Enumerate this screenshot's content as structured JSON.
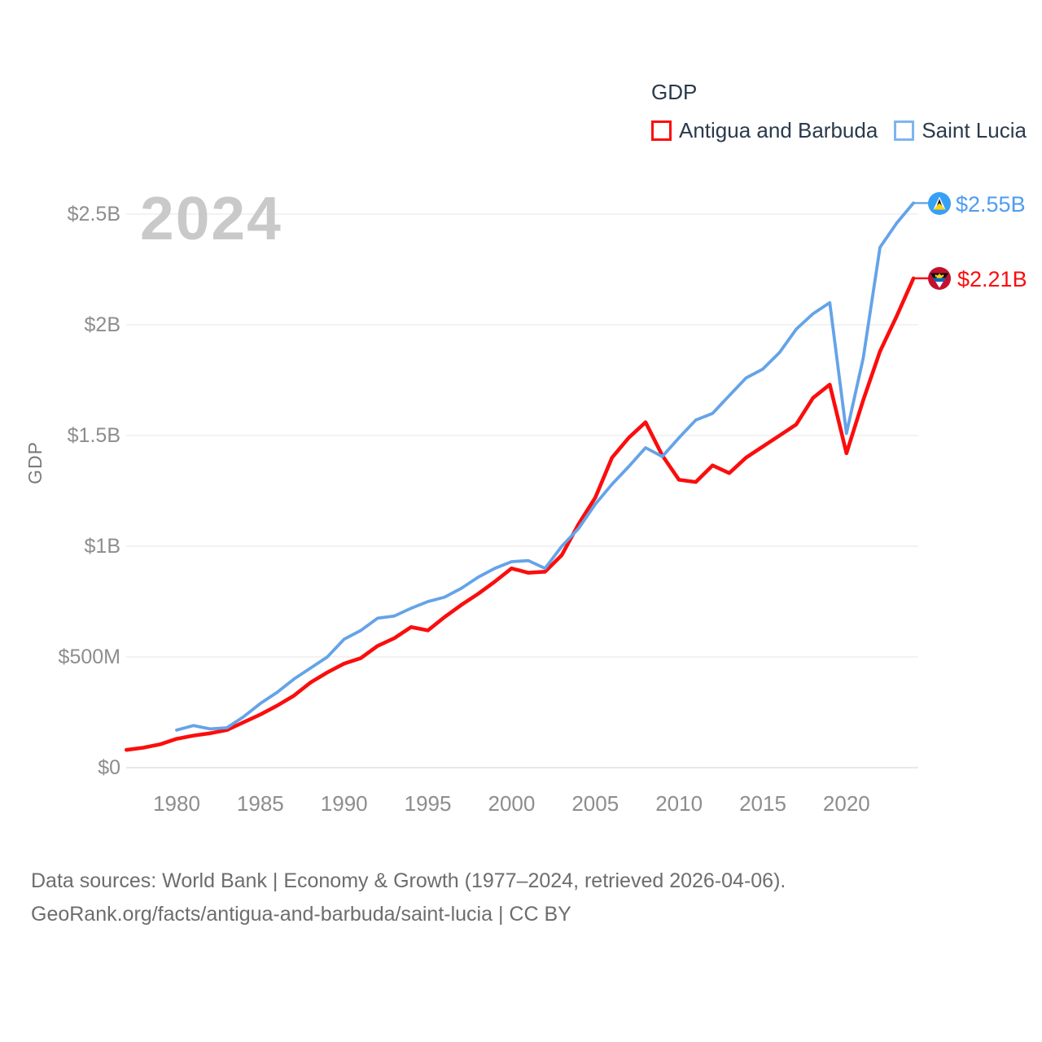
{
  "legend": {
    "title": "GDP",
    "items": [
      {
        "label": "Antigua and Barbuda",
        "color": "#fb0d0d"
      },
      {
        "label": "Saint Lucia",
        "color": "#7db6ee"
      }
    ]
  },
  "watermark": "2024",
  "y_axis_title": "GDP",
  "end_labels": [
    {
      "series": "Saint Lucia",
      "value": "$2.55B",
      "color": "#4e9cf1",
      "flag": "saint-lucia-flag-icon"
    },
    {
      "series": "Antigua and Barbuda",
      "value": "$2.21B",
      "color": "#fb0d0d",
      "flag": "antigua-and-barbuda-flag-icon"
    }
  ],
  "footer": {
    "line1": "Data sources: World Bank | Economy & Growth (1977–2024, retrieved 2026-04-06).",
    "line2": "GeoRank.org/facts/antigua-and-barbuda/saint-lucia | CC BY"
  },
  "chart_data": {
    "type": "line",
    "title": "GDP",
    "ylabel": "GDP",
    "xlabel": "",
    "grid": "horizontal-only",
    "legend_position": "top-right",
    "xlim": [
      1977,
      2024
    ],
    "ylim_billions": [
      0,
      2.64
    ],
    "x_years": [
      1977,
      1978,
      1979,
      1980,
      1981,
      1982,
      1983,
      1984,
      1985,
      1986,
      1987,
      1988,
      1989,
      1990,
      1991,
      1992,
      1993,
      1994,
      1995,
      1996,
      1997,
      1998,
      1999,
      2000,
      2001,
      2002,
      2003,
      2004,
      2005,
      2006,
      2007,
      2008,
      2009,
      2010,
      2011,
      2012,
      2013,
      2014,
      2015,
      2016,
      2017,
      2018,
      2019,
      2020,
      2021,
      2022,
      2023,
      2024
    ],
    "series": [
      {
        "name": "Antigua and Barbuda",
        "color": "#fb0d0d",
        "stroke_width": 4.6,
        "values_billions": [
          0.08,
          0.09,
          0.105,
          0.13,
          0.145,
          0.155,
          0.17,
          0.205,
          0.24,
          0.28,
          0.325,
          0.385,
          0.43,
          0.47,
          0.495,
          0.55,
          0.585,
          0.635,
          0.62,
          0.68,
          0.735,
          0.785,
          0.84,
          0.9,
          0.88,
          0.885,
          0.96,
          1.1,
          1.22,
          1.4,
          1.49,
          1.56,
          1.41,
          1.3,
          1.29,
          1.365,
          1.33,
          1.4,
          1.45,
          1.5,
          1.55,
          1.67,
          1.73,
          1.42,
          1.66,
          1.88,
          2.04,
          2.21
        ]
      },
      {
        "name": "Saint Lucia",
        "color": "#64a3e8",
        "stroke_width": 3.8,
        "values_billions": [
          null,
          null,
          null,
          0.17,
          0.19,
          0.175,
          0.18,
          0.23,
          0.29,
          0.34,
          0.4,
          0.45,
          0.5,
          0.58,
          0.62,
          0.675,
          0.685,
          0.72,
          0.75,
          0.77,
          0.81,
          0.86,
          0.9,
          0.93,
          0.935,
          0.9,
          1.0,
          1.08,
          1.19,
          1.28,
          1.36,
          1.445,
          1.405,
          1.49,
          1.57,
          1.6,
          1.68,
          1.76,
          1.8,
          1.875,
          1.98,
          2.05,
          2.1,
          1.51,
          1.85,
          2.35,
          2.46,
          2.55
        ]
      }
    ],
    "y_ticks": [
      {
        "label": "$0",
        "value_billions": 0
      },
      {
        "label": "$500M",
        "value_billions": 0.5
      },
      {
        "label": "$1B",
        "value_billions": 1
      },
      {
        "label": "$1.5B",
        "value_billions": 1.5
      },
      {
        "label": "$2B",
        "value_billions": 2
      },
      {
        "label": "$2.5B",
        "value_billions": 2.5
      }
    ],
    "x_ticks": [
      {
        "label": "1980",
        "year": 1980
      },
      {
        "label": "1985",
        "year": 1985
      },
      {
        "label": "1990",
        "year": 1990
      },
      {
        "label": "1995",
        "year": 1995
      },
      {
        "label": "2000",
        "year": 2000
      },
      {
        "label": "2005",
        "year": 2005
      },
      {
        "label": "2010",
        "year": 2010
      },
      {
        "label": "2015",
        "year": 2015
      },
      {
        "label": "2020",
        "year": 2020
      }
    ]
  }
}
